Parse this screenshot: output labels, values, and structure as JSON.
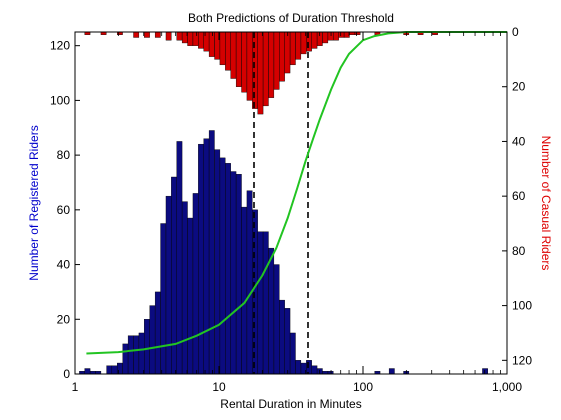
{
  "chart_data": {
    "type": "bar",
    "title": "Both Predictions of Duration Threshold",
    "xlabel": "Rental Duration in Minutes",
    "ylabel_left": "Number of Registered Riders",
    "ylabel_right": "Number of Casual Riders",
    "x_scale": "log",
    "xlim": [
      1,
      1000
    ],
    "ylim_left": [
      0,
      125
    ],
    "ylim_right": [
      125,
      0
    ],
    "x_ticks": [
      {
        "value": 1,
        "label": "1"
      },
      {
        "value": 10,
        "label": "10"
      },
      {
        "value": 100,
        "label": "100"
      },
      {
        "value": 1000,
        "label": "1,000"
      }
    ],
    "yleft_ticks": [
      0,
      20,
      40,
      60,
      80,
      100,
      120
    ],
    "yright_ticks": [
      0,
      20,
      40,
      60,
      80,
      100,
      120
    ],
    "colors": {
      "registered": "#0b0b80",
      "casual": "#d40000",
      "curve": "#22c422",
      "ylabel_left": "#0000cc",
      "ylabel_right": "#dd0000",
      "threshold": "#000000"
    },
    "series": [
      {
        "name": "Registered Riders",
        "axis": "left",
        "x": [
          1.12,
          1.22,
          1.33,
          1.45,
          1.58,
          1.73,
          1.88,
          2.05,
          2.24,
          2.44,
          2.66,
          2.9,
          3.16,
          3.45,
          3.76,
          4.1,
          4.47,
          4.87,
          5.31,
          5.79,
          6.31,
          6.88,
          7.5,
          8.18,
          8.91,
          9.72,
          10.59,
          11.55,
          12.59,
          13.73,
          14.96,
          16.31,
          17.78,
          19.39,
          21.13,
          23.04,
          25.12,
          27.38,
          29.85,
          32.55,
          35.48,
          38.69,
          42.17,
          45.98,
          50.12,
          54.65,
          59.57,
          125.89,
          158.49,
          199.53,
          704.69
        ],
        "values": [
          1,
          2,
          1,
          1,
          0,
          3,
          3,
          4,
          11,
          14,
          14,
          15,
          20,
          25,
          30,
          55,
          65,
          72,
          85,
          63,
          57,
          66,
          84,
          86,
          89,
          82,
          79,
          77,
          74,
          73,
          61,
          67,
          60,
          52,
          52,
          46,
          40,
          27,
          24,
          15,
          5,
          4,
          5,
          3,
          2,
          1,
          1,
          1,
          2,
          1,
          2
        ]
      },
      {
        "name": "Casual Riders",
        "axis": "right",
        "x": [
          1.22,
          1.58,
          2.05,
          2.66,
          3.16,
          3.76,
          4.47,
          5.31,
          5.79,
          6.31,
          6.88,
          7.5,
          8.18,
          8.91,
          9.72,
          10.59,
          11.55,
          12.59,
          13.73,
          14.96,
          16.31,
          17.78,
          19.39,
          21.13,
          23.04,
          25.12,
          27.38,
          29.85,
          32.55,
          35.48,
          38.69,
          42.17,
          45.98,
          50.12,
          54.65,
          59.57,
          64.94,
          70.79,
          77.18,
          84.14,
          91.73,
          125.89,
          199.53,
          251.19,
          316.23
        ],
        "values": [
          1,
          1,
          1,
          2,
          2,
          2,
          3,
          3,
          4,
          5,
          5,
          6,
          7,
          9,
          10,
          12,
          14,
          17,
          20,
          22,
          25,
          28,
          30,
          27,
          24,
          21,
          18,
          15,
          12,
          10,
          8,
          7,
          6,
          5,
          4,
          3,
          3,
          2,
          2,
          1,
          1,
          1,
          1,
          1,
          1
        ]
      }
    ],
    "curve": {
      "axis": "left",
      "x": [
        1.2,
        2,
        3,
        5,
        7,
        10,
        15,
        20,
        25,
        30,
        35,
        40,
        45,
        50,
        60,
        70,
        80,
        100,
        120,
        150,
        200,
        300,
        500,
        1000
      ],
      "y": [
        7.5,
        8,
        9,
        11,
        14,
        18,
        26,
        36,
        46,
        57,
        68,
        78,
        86,
        93,
        104,
        112,
        117,
        122,
        123.5,
        124.5,
        125,
        125,
        125,
        125
      ]
    },
    "thresholds": [
      17.5,
      41.5
    ]
  }
}
